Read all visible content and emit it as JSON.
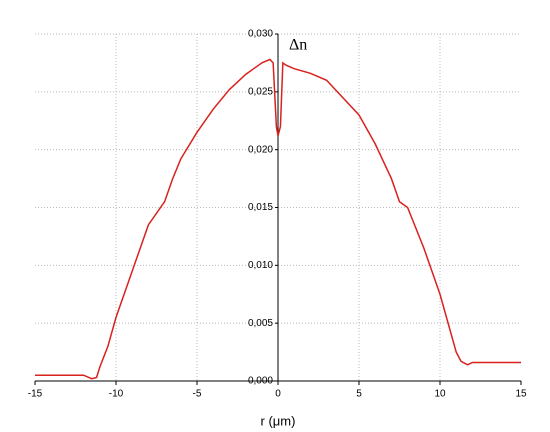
{
  "chart_data": {
    "type": "line",
    "x_label": "r (μm)",
    "y_label": "Δn",
    "x": [
      -15,
      -14,
      -13,
      -12,
      -11.5,
      -11.2,
      -11,
      -10.5,
      -10,
      -9,
      -8,
      -7,
      -6.5,
      -6,
      -5,
      -4,
      -3,
      -2,
      -1.5,
      -1,
      -0.5,
      -0.3,
      -0.1,
      0,
      0.15,
      0.3,
      0.5,
      1,
      2,
      3,
      4,
      5,
      6,
      7,
      7.5,
      8,
      9,
      10,
      11,
      11.3,
      11.7,
      12,
      13,
      14,
      15
    ],
    "series": [
      {
        "color": "#d9211e",
        "values": [
          0.0005,
          0.0005,
          0.0005,
          0.0005,
          0.0002,
          0.0003,
          0.0012,
          0.003,
          0.0055,
          0.0095,
          0.0135,
          0.0155,
          0.0175,
          0.0192,
          0.0215,
          0.0235,
          0.0252,
          0.0265,
          0.027,
          0.0275,
          0.0278,
          0.0275,
          0.022,
          0.0212,
          0.022,
          0.0275,
          0.0273,
          0.027,
          0.0266,
          0.026,
          0.0245,
          0.023,
          0.0205,
          0.0175,
          0.0155,
          0.015,
          0.0115,
          0.0075,
          0.0025,
          0.0017,
          0.0014,
          0.0016,
          0.0016,
          0.0016,
          0.0016
        ]
      }
    ],
    "xlim": [
      -15,
      15
    ],
    "xticks": [
      -15,
      -10,
      -5,
      0,
      5,
      10,
      15
    ],
    "ylim": [
      0,
      0.03
    ],
    "yticks": [
      {
        "value": 0,
        "label": "0,000"
      },
      {
        "value": 0.005,
        "label": "0,005"
      },
      {
        "value": 0.01,
        "label": "0,010"
      },
      {
        "value": 0.015,
        "label": "0,015"
      },
      {
        "value": 0.02,
        "label": "0,020"
      },
      {
        "value": 0.025,
        "label": "0,025"
      },
      {
        "value": 0.03,
        "label": "0,030"
      }
    ],
    "grid": true
  }
}
